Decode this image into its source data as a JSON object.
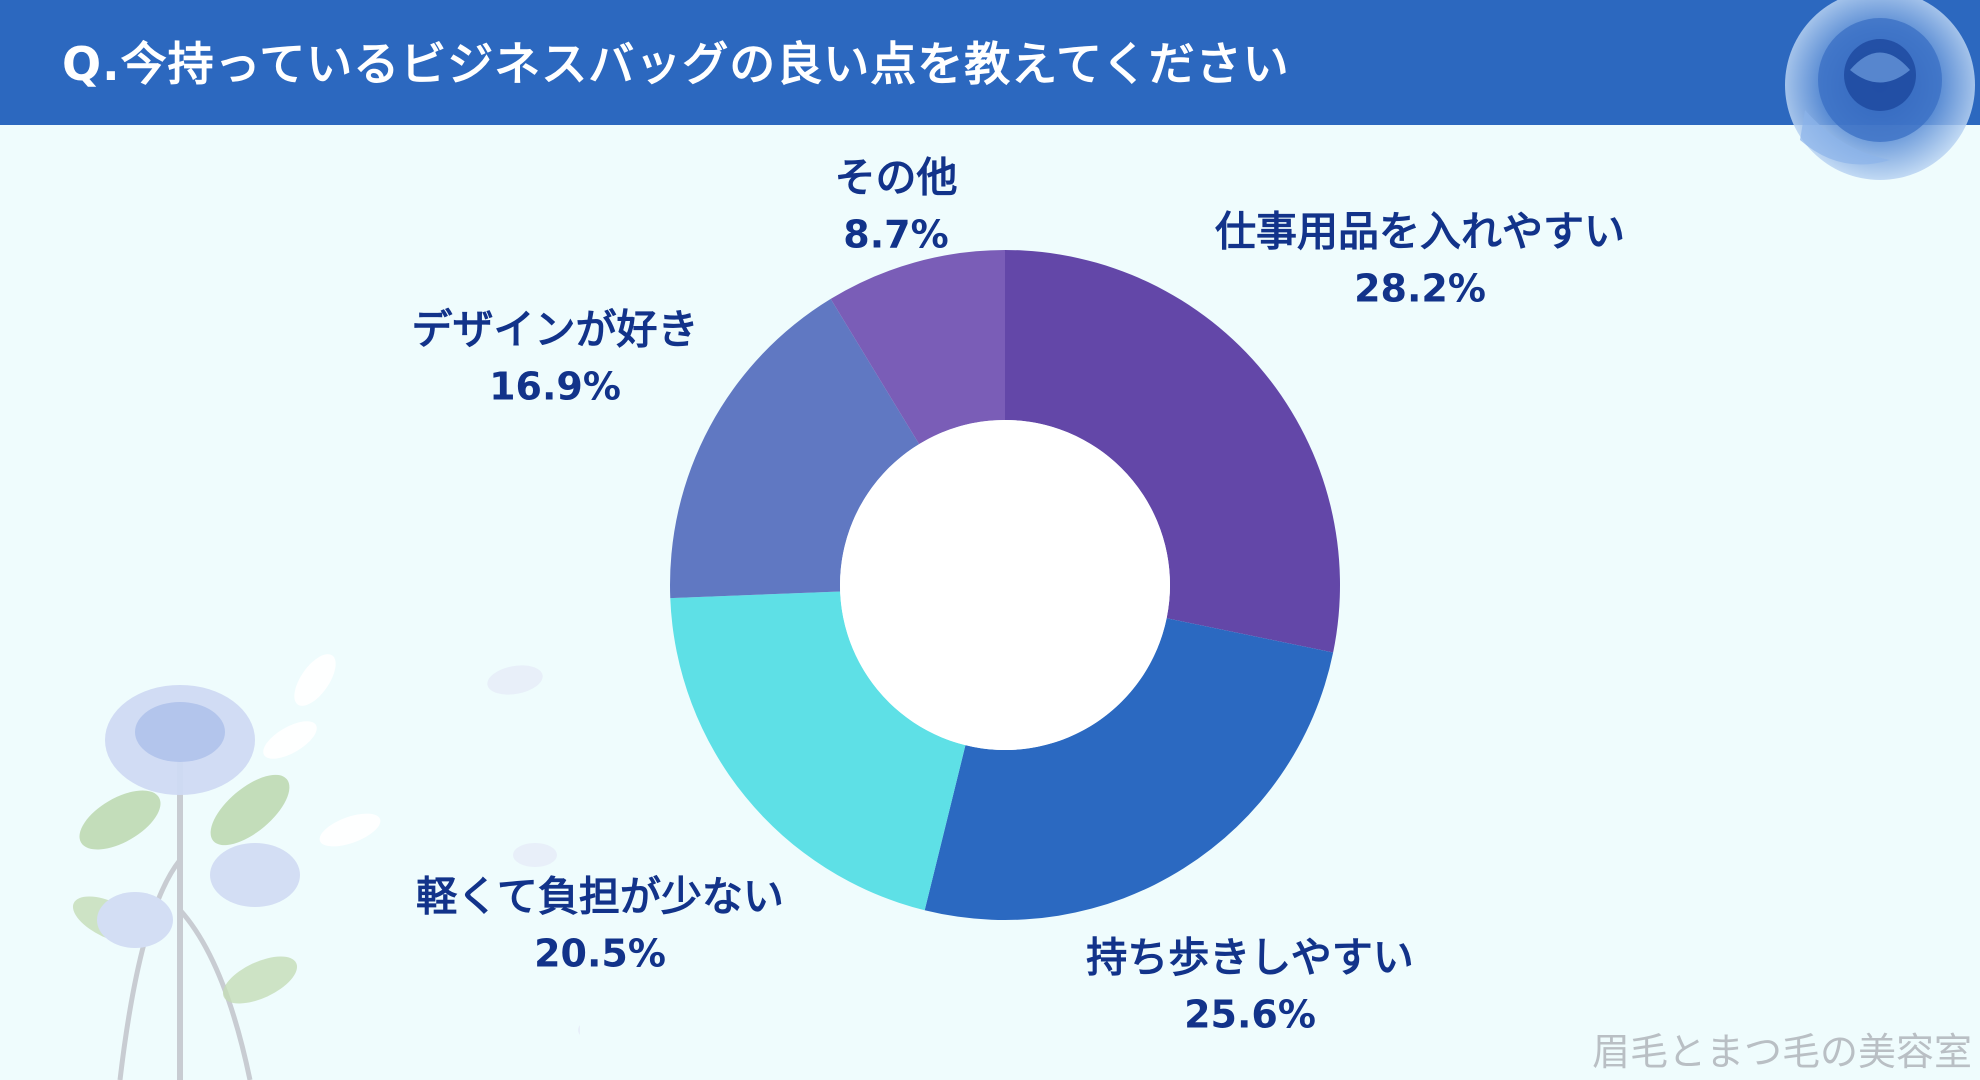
{
  "header": {
    "title": "Q.今持っているビジネスバッグの良い点を教えてください"
  },
  "chart_data": {
    "type": "pie",
    "categories": [
      "仕事用品を入れやすい",
      "持ち歩きしやすい",
      "軽くて負担が少ない",
      "デザインが好き",
      "その他"
    ],
    "values": [
      28.2,
      25.6,
      20.5,
      16.9,
      8.7
    ],
    "value_labels": [
      "28.2%",
      "25.6%",
      "20.5%",
      "16.9%",
      "8.7%"
    ],
    "colors": [
      "#6347a8",
      "#2b69c1",
      "#5ee0e6",
      "#6078c2",
      "#7a5db7"
    ],
    "title": "Q.今持っているビジネスバッグの良い点を教えてください",
    "donut": true,
    "start_angle_deg": 0,
    "direction": "clockwise"
  },
  "watermark": "眉毛とまつ毛の美容室",
  "decorations": [
    "blue-rose-icon",
    "rose-bouquet-icon",
    "petal-icon"
  ]
}
